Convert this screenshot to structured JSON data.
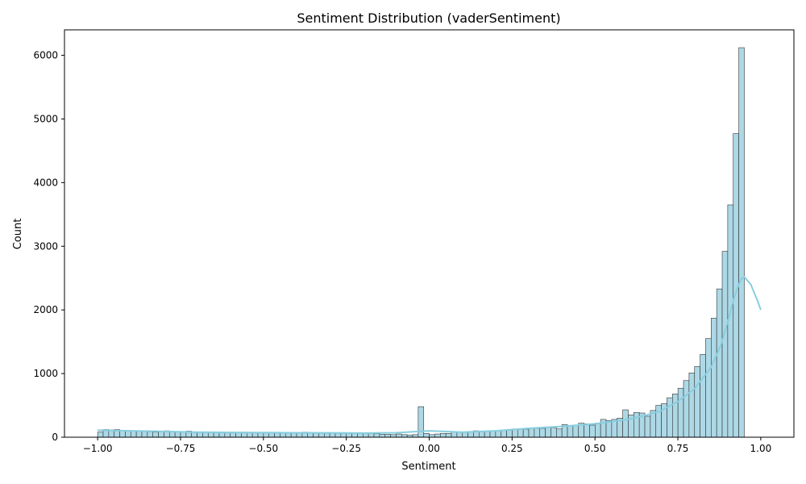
{
  "chart_data": {
    "type": "bar",
    "title": "Sentiment Distribution (vaderSentiment)",
    "xlabel": "Sentiment",
    "ylabel": "Count",
    "xlim": [
      -1.1,
      1.1
    ],
    "ylim": [
      0,
      6400
    ],
    "xticks": [
      -1.0,
      -0.75,
      -0.5,
      -0.25,
      0.0,
      0.25,
      0.5,
      0.75,
      1.0
    ],
    "xtick_labels": [
      "−1.00",
      "−0.75",
      "−0.50",
      "−0.25",
      "0.00",
      "0.25",
      "0.50",
      "0.75",
      "1.00"
    ],
    "yticks": [
      0,
      1000,
      2000,
      3000,
      4000,
      5000,
      6000
    ],
    "ytick_labels": [
      "0",
      "1000",
      "2000",
      "3000",
      "4000",
      "5000",
      "6000"
    ],
    "bin_start": -1.0,
    "bin_width": 0.01667,
    "bar_color": "#add8e6",
    "bar_edge_color": "#333333",
    "kde_color": "#87cedf",
    "grid": false,
    "legend": "none",
    "values": [
      80,
      120,
      115,
      120,
      110,
      105,
      100,
      95,
      90,
      85,
      80,
      85,
      100,
      90,
      85,
      80,
      95,
      85,
      80,
      75,
      75,
      80,
      80,
      75,
      80,
      75,
      80,
      75,
      70,
      75,
      70,
      75,
      70,
      70,
      75,
      70,
      70,
      80,
      70,
      65,
      70,
      60,
      65,
      60,
      60,
      60,
      60,
      60,
      60,
      60,
      55,
      45,
      45,
      40,
      50,
      40,
      35,
      40,
      480,
      60,
      40,
      50,
      60,
      60,
      80,
      75,
      80,
      80,
      100,
      90,
      90,
      100,
      100,
      110,
      110,
      130,
      130,
      125,
      140,
      140,
      140,
      150,
      150,
      130,
      200,
      180,
      190,
      220,
      210,
      190,
      220,
      280,
      260,
      280,
      300,
      430,
      350,
      390,
      380,
      330,
      420,
      500,
      530,
      620,
      680,
      770,
      890,
      1010,
      1110,
      1300,
      1550,
      1870,
      2330,
      2920,
      3650,
      4770,
      6120
    ],
    "kde": {
      "x": [
        -1.0,
        -0.9,
        -0.8,
        -0.7,
        -0.6,
        -0.5,
        -0.4,
        -0.3,
        -0.2,
        -0.1,
        0.0,
        0.1,
        0.2,
        0.3,
        0.4,
        0.5,
        0.6,
        0.65,
        0.7,
        0.75,
        0.8,
        0.85,
        0.88,
        0.9,
        0.92,
        0.94,
        0.95,
        0.97,
        0.99,
        1.0
      ],
      "y": [
        110,
        100,
        90,
        80,
        75,
        72,
        70,
        68,
        65,
        70,
        100,
        80,
        100,
        140,
        170,
        210,
        280,
        340,
        420,
        560,
        760,
        1100,
        1450,
        1800,
        2200,
        2480,
        2520,
        2400,
        2150,
        2000
      ]
    }
  }
}
